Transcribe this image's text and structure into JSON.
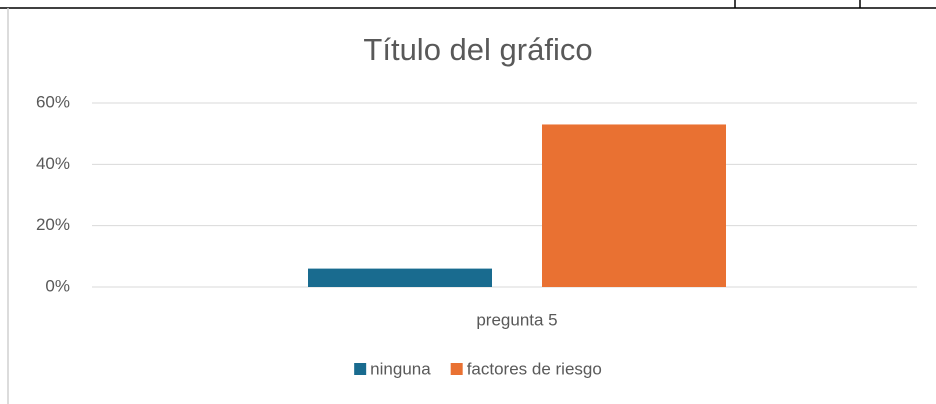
{
  "chart_data": {
    "type": "bar",
    "title": "Título del gráfico",
    "categories": [
      "pregunta 5"
    ],
    "series": [
      {
        "name": "ninguna",
        "color": "#196b8f",
        "values": [
          6
        ]
      },
      {
        "name": "factores de riesgo",
        "color": "#e97132",
        "values": [
          53
        ]
      }
    ],
    "ylim": [
      0,
      60
    ],
    "yticks": [
      {
        "value": 0,
        "label": "0%"
      },
      {
        "value": 20,
        "label": "20%"
      },
      {
        "value": 40,
        "label": "40%"
      },
      {
        "value": 60,
        "label": "60%"
      }
    ],
    "grid": true,
    "legend": "bottom"
  }
}
